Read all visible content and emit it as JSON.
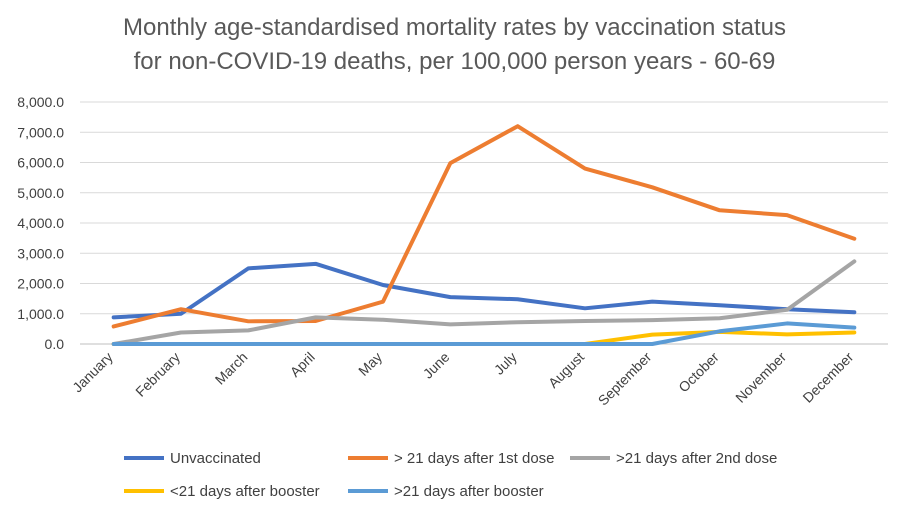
{
  "chart_data": {
    "type": "line",
    "title": [
      "Monthly age-standardised mortality rates by vaccination status",
      "for non-COVID-19 deaths, per 100,000 person years - 60-69"
    ],
    "xlabel": "",
    "ylabel": "",
    "ylim": [
      0,
      8000
    ],
    "yticks": [
      "0.0",
      "1,000.0",
      "2,000.0",
      "3,000.0",
      "4,000.0",
      "5,000.0",
      "6,000.0",
      "7,000.0",
      "8,000.0"
    ],
    "grid": true,
    "legend_position": "bottom",
    "categories": [
      "January",
      "February",
      "March",
      "April",
      "May",
      "June",
      "July",
      "August",
      "September",
      "October",
      "November",
      "December"
    ],
    "series": [
      {
        "name": "Unvaccinated",
        "color": "#4472C4",
        "values": [
          880,
          1000,
          2500,
          2650,
          1950,
          1550,
          1480,
          1180,
          1400,
          1280,
          1150,
          1050
        ]
      },
      {
        "name": "> 21 days after 1st dose",
        "color": "#ED7D31",
        "values": [
          580,
          1150,
          750,
          760,
          1400,
          5980,
          7200,
          5800,
          5180,
          4420,
          4260,
          3480
        ]
      },
      {
        "name": ">21 days after 2nd dose",
        "color": "#A5A5A5",
        "values": [
          0,
          380,
          450,
          880,
          800,
          650,
          720,
          760,
          790,
          850,
          1130,
          2730
        ]
      },
      {
        "name": "<21 days after booster",
        "color": "#FFC000",
        "values": [
          0,
          0,
          0,
          0,
          0,
          0,
          0,
          0,
          310,
          400,
          320,
          380
        ]
      },
      {
        "name": ">21 days after booster",
        "color": "#5B9BD5",
        "values": [
          0,
          0,
          0,
          0,
          0,
          0,
          0,
          0,
          0,
          420,
          680,
          540
        ]
      }
    ]
  }
}
